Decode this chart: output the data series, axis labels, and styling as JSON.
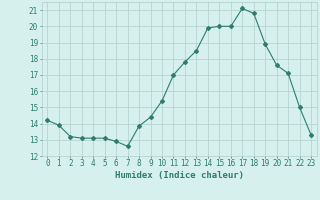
{
  "x": [
    0,
    1,
    2,
    3,
    4,
    5,
    6,
    7,
    8,
    9,
    10,
    11,
    12,
    13,
    14,
    15,
    16,
    17,
    18,
    19,
    20,
    21,
    22,
    23
  ],
  "y": [
    14.2,
    13.9,
    13.2,
    13.1,
    13.1,
    13.1,
    12.9,
    12.6,
    13.85,
    14.4,
    15.4,
    17.0,
    17.8,
    18.5,
    19.9,
    20.0,
    20.0,
    21.1,
    20.8,
    18.9,
    17.6,
    17.1,
    15.0,
    13.3
  ],
  "line_color": "#2e7d6e",
  "marker": "D",
  "marker_size": 2.0,
  "bg_color": "#d6f0ee",
  "grid_color": "#b0ceca",
  "xlabel": "Humidex (Indice chaleur)",
  "xlim": [
    -0.5,
    23.5
  ],
  "ylim": [
    12,
    21.5
  ],
  "yticks": [
    12,
    13,
    14,
    15,
    16,
    17,
    18,
    19,
    20,
    21
  ],
  "xticks": [
    0,
    1,
    2,
    3,
    4,
    5,
    6,
    7,
    8,
    9,
    10,
    11,
    12,
    13,
    14,
    15,
    16,
    17,
    18,
    19,
    20,
    21,
    22,
    23
  ],
  "tick_color": "#2e7d6e",
  "label_color": "#2e7d6e",
  "tick_fontsize": 5.5,
  "xlabel_fontsize": 6.5
}
